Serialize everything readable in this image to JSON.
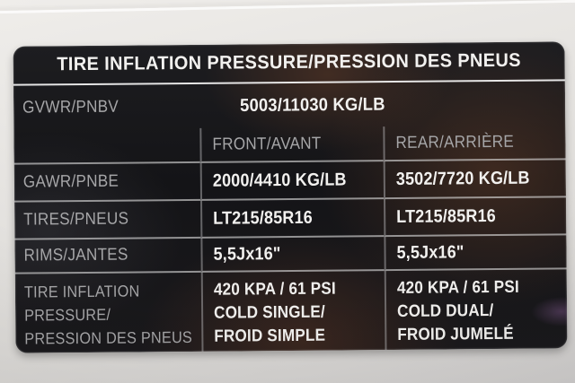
{
  "colors": {
    "placard_bg": "#141417",
    "dim_text": "#a6a6a8",
    "value_text": "#f2f1ef",
    "line": "#dedede",
    "panel_bg": "#e3e1de",
    "reflection_brown": "#6e4630"
  },
  "placard": {
    "title": "TIRE INFLATION PRESSURE/PRESSION DES PNEUS",
    "gvwr": {
      "label": "GVWR/PNBV",
      "value": "5003/11030 KG/LB"
    },
    "columns": {
      "front": "FRONT/AVANT",
      "rear": "REAR/ARRIÈRE"
    },
    "gawr": {
      "label": "GAWR/PNBE",
      "front": "2000/4410 KG/LB",
      "rear": "3502/7720 KG/LB"
    },
    "tires": {
      "label": "TIRES/PNEUS",
      "front": "LT215/85R16",
      "rear": "LT215/85R16"
    },
    "rims": {
      "label": "RIMS/JANTES",
      "front": "5,5Jx16\"",
      "rear": "5,5Jx16\""
    },
    "pressure": {
      "label_lines": [
        "TIRE INFLATION",
        "PRESSURE/",
        "PRESSION DES PNEUS"
      ],
      "front_lines": [
        "420 KPA / 61 PSI",
        "COLD SINGLE/",
        "FROID SIMPLE"
      ],
      "rear_lines": [
        "420 KPA / 61 PSI",
        "COLD DUAL/",
        "FROID JUMELÉ"
      ]
    }
  }
}
